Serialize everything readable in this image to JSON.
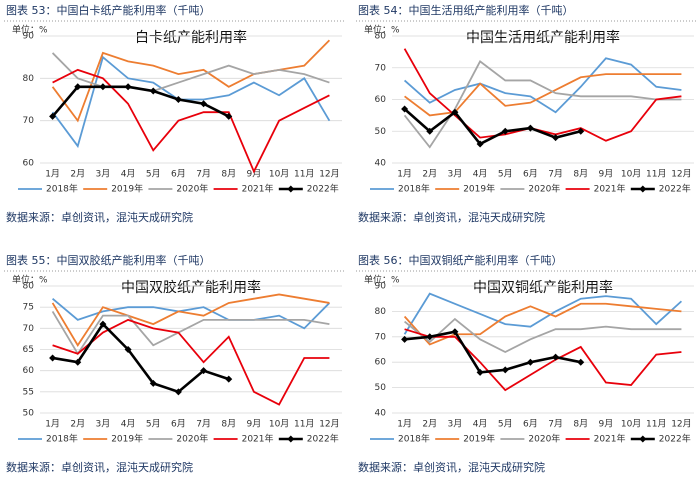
{
  "chart_data": [
    {
      "type": "line",
      "caption": "图表 53：中国白卡纸产能利用率（千吨）",
      "title": "白卡纸产能利用率",
      "unit": "单位：%",
      "source": "数据来源：卓创资讯，混沌天成研究院",
      "categories": [
        "1月",
        "2月",
        "3月",
        "4月",
        "5月",
        "6月",
        "7月",
        "8月",
        "9月",
        "10月",
        "11月",
        "12月"
      ],
      "ylim": [
        60,
        90
      ],
      "yticks": [
        60,
        70,
        80,
        90
      ],
      "grid": true,
      "series": [
        {
          "name": "2018年",
          "color": "#5b9bd5",
          "values": [
            72,
            64,
            85,
            80,
            79,
            75,
            75,
            76,
            79,
            76,
            80,
            70
          ]
        },
        {
          "name": "2019年",
          "color": "#ed7d31",
          "values": [
            78,
            70,
            86,
            84,
            83,
            81,
            82,
            78,
            81,
            82,
            83,
            89
          ]
        },
        {
          "name": "2020年",
          "color": "#a5a5a5",
          "values": [
            86,
            80,
            78,
            78,
            77,
            79,
            81,
            83,
            81,
            82,
            81,
            79
          ]
        },
        {
          "name": "2021年",
          "color": "#e8000b",
          "values": [
            79,
            82,
            80,
            74,
            63,
            70,
            72,
            72,
            58,
            70,
            73,
            76
          ]
        },
        {
          "name": "2022年",
          "color": "#000000",
          "marker": "diamond",
          "values": [
            71,
            78,
            78,
            78,
            77,
            75,
            74,
            71,
            null,
            null,
            null,
            null
          ]
        }
      ]
    },
    {
      "type": "line",
      "caption": "图表 54：中国生活用纸产能利用率（千吨）",
      "title": "中国生活用纸产能利用率",
      "unit": "单位：%",
      "source": "数据来源：卓创资讯，混沌天成研究院",
      "categories": [
        "1月",
        "2月",
        "3月",
        "4月",
        "5月",
        "6月",
        "7月",
        "8月",
        "9月",
        "10月",
        "11月",
        "12月"
      ],
      "ylim": [
        40,
        80
      ],
      "yticks": [
        40,
        50,
        60,
        70,
        80
      ],
      "grid": true,
      "series": [
        {
          "name": "2018年",
          "color": "#5b9bd5",
          "values": [
            66,
            59,
            63,
            65,
            62,
            61,
            56,
            64,
            73,
            71,
            64,
            63
          ]
        },
        {
          "name": "2019年",
          "color": "#ed7d31",
          "values": [
            61,
            55,
            56,
            65,
            58,
            59,
            63,
            67,
            68,
            68,
            68,
            68
          ]
        },
        {
          "name": "2020年",
          "color": "#a5a5a5",
          "values": [
            55,
            45,
            57,
            72,
            66,
            66,
            62,
            61,
            61,
            61,
            60,
            60
          ]
        },
        {
          "name": "2021年",
          "color": "#e8000b",
          "values": [
            76,
            62,
            55,
            48,
            49,
            51,
            49,
            51,
            47,
            50,
            60,
            61
          ]
        },
        {
          "name": "2022年",
          "color": "#000000",
          "marker": "diamond",
          "values": [
            57,
            50,
            56,
            46,
            50,
            51,
            48,
            50,
            null,
            null,
            null,
            null
          ]
        }
      ]
    },
    {
      "type": "line",
      "caption": "图表 55：中国双胶纸产能利用率（千吨）",
      "title": "中国双胶纸产能利用率",
      "unit": "单位：%",
      "source": "数据来源：卓创资讯，混沌天成研究院",
      "categories": [
        "1月",
        "2月",
        "3月",
        "4月",
        "5月",
        "6月",
        "7月",
        "8月",
        "9月",
        "10月",
        "11月",
        "12月"
      ],
      "ylim": [
        50,
        80
      ],
      "yticks": [
        50,
        55,
        60,
        65,
        70,
        75,
        80
      ],
      "grid": true,
      "series": [
        {
          "name": "2018年",
          "color": "#5b9bd5",
          "values": [
            77,
            72,
            74,
            75,
            75,
            74,
            75,
            72,
            72,
            73,
            70,
            76
          ]
        },
        {
          "name": "2019年",
          "color": "#ed7d31",
          "values": [
            76,
            66,
            75,
            73,
            71,
            74,
            73,
            76,
            77,
            78,
            77,
            76
          ]
        },
        {
          "name": "2020年",
          "color": "#a5a5a5",
          "values": [
            74,
            64,
            73,
            73,
            66,
            69,
            72,
            72,
            72,
            72,
            72,
            71
          ]
        },
        {
          "name": "2021年",
          "color": "#e8000b",
          "values": [
            66,
            64,
            69,
            72,
            70,
            69,
            62,
            68,
            55,
            52,
            63,
            63
          ]
        },
        {
          "name": "2022年",
          "color": "#000000",
          "marker": "diamond",
          "values": [
            63,
            62,
            71,
            65,
            57,
            55,
            60,
            58,
            null,
            null,
            null,
            null
          ]
        }
      ]
    },
    {
      "type": "line",
      "caption": "图表 56：中国双铜纸产能利用率（千吨）",
      "title": "中国双铜纸产能利用率",
      "unit": "单位：%",
      "source": "数据来源：卓创资讯，混沌天成研究院",
      "categories": [
        "1月",
        "2月",
        "3月",
        "4月",
        "5月",
        "6月",
        "7月",
        "8月",
        "9月",
        "10月",
        "11月",
        "12月"
      ],
      "ylim": [
        40,
        90
      ],
      "yticks": [
        40,
        50,
        60,
        70,
        80,
        90
      ],
      "grid": true,
      "series": [
        {
          "name": "2018年",
          "color": "#5b9bd5",
          "values": [
            71,
            87,
            83,
            79,
            75,
            74,
            80,
            85,
            86,
            85,
            75,
            84
          ]
        },
        {
          "name": "2019年",
          "color": "#ed7d31",
          "values": [
            78,
            67,
            71,
            71,
            78,
            82,
            78,
            83,
            83,
            82,
            81,
            80
          ]
        },
        {
          "name": "2020年",
          "color": "#a5a5a5",
          "values": [
            76,
            68,
            77,
            69,
            64,
            69,
            73,
            73,
            74,
            73,
            73,
            73
          ]
        },
        {
          "name": "2021年",
          "color": "#e8000b",
          "values": [
            73,
            70,
            70,
            60,
            49,
            55,
            61,
            66,
            52,
            51,
            63,
            64
          ]
        },
        {
          "name": "2022年",
          "color": "#000000",
          "marker": "diamond",
          "values": [
            69,
            70,
            72,
            56,
            57,
            60,
            62,
            60,
            null,
            null,
            null,
            null
          ]
        }
      ]
    }
  ]
}
